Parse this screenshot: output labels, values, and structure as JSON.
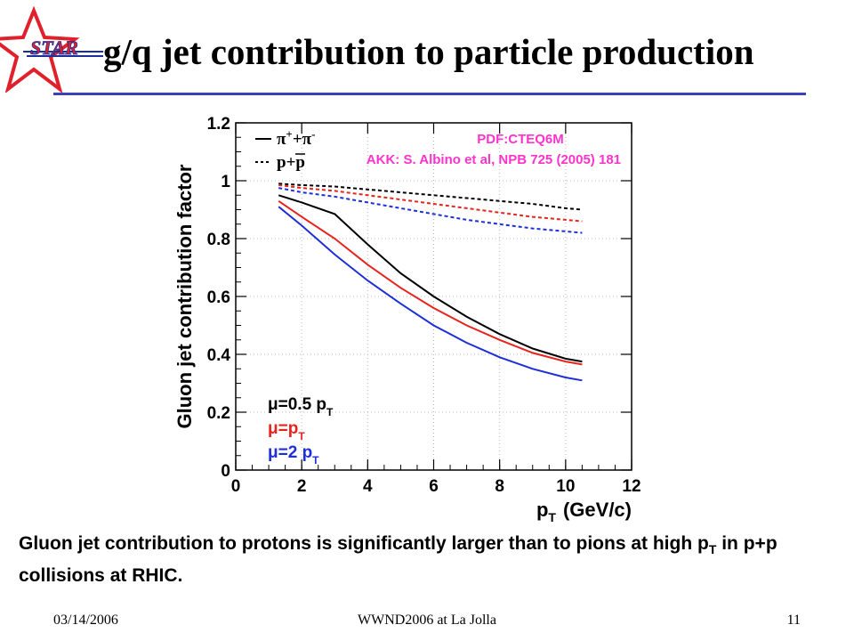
{
  "slide": {
    "logo_text": "STAR",
    "title": "g/q jet contribution to particle production",
    "caption_part1": "Gluon jet contribution to protons is significantly larger than to pions at high p",
    "caption_sub": "T",
    "caption_part2": " in p+p collisions at RHIC.",
    "footer_date": "03/14/2006",
    "footer_event": "WWND2006 at La Jolla",
    "footer_page": "11"
  },
  "colors": {
    "rule": "#3b3fb8",
    "logo_star": "#e0202a",
    "logo_text": "#1a2f9c"
  },
  "chart_data": {
    "type": "line",
    "ylabel": "Gluon jet contribution factor",
    "xlabel_main": "p",
    "xlabel_sub": "T",
    "xlabel_units": "(GeV/c)",
    "xlim": [
      0,
      12
    ],
    "ylim": [
      0,
      1.2
    ],
    "xticks": [
      "0",
      "2",
      "4",
      "6",
      "8",
      "10",
      "12"
    ],
    "yticks": [
      "0",
      "0.2",
      "0.4",
      "0.6",
      "0.8",
      "1",
      "1.2"
    ],
    "grid": true,
    "legend_style": [
      {
        "style": "solid",
        "label_main": "π",
        "label_sup1": "+",
        "label_mid": "+π",
        "label_sup2": "-"
      },
      {
        "style": "dashed",
        "label": "p+p"
      }
    ],
    "legend_scale": [
      {
        "label_main": "μ=0.5 p",
        "label_sub": "T",
        "color": "#000000"
      },
      {
        "label_main": "μ=p",
        "label_sub": "T",
        "color": "#e8231c"
      },
      {
        "label_main": "μ=2 p",
        "label_sub": "T",
        "color": "#1d2fd6"
      }
    ],
    "annotations": [
      {
        "text": "PDF:CTEQ6M",
        "color": "#ff33cc"
      },
      {
        "text": "AKK: S. Albino et al, NPB 725 (2005) 181",
        "color": "#ff33cc"
      }
    ],
    "series": [
      {
        "particle": "pions",
        "scale": "0.5 pT",
        "style": "solid",
        "color": "#000000",
        "x": [
          1.3,
          2,
          3,
          4,
          5,
          6,
          7,
          8,
          9,
          10,
          10.5
        ],
        "y": [
          0.95,
          0.925,
          0.885,
          0.78,
          0.68,
          0.6,
          0.53,
          0.47,
          0.42,
          0.385,
          0.375
        ]
      },
      {
        "particle": "pions",
        "scale": "pT",
        "style": "solid",
        "color": "#e8231c",
        "x": [
          1.3,
          2,
          3,
          4,
          5,
          6,
          7,
          8,
          9,
          10,
          10.5
        ],
        "y": [
          0.93,
          0.875,
          0.8,
          0.71,
          0.63,
          0.56,
          0.5,
          0.45,
          0.405,
          0.375,
          0.365
        ]
      },
      {
        "particle": "pions",
        "scale": "2 pT",
        "style": "solid",
        "color": "#1d2fd6",
        "x": [
          1.3,
          2,
          3,
          4,
          5,
          6,
          7,
          8,
          9,
          10,
          10.5
        ],
        "y": [
          0.91,
          0.845,
          0.745,
          0.655,
          0.575,
          0.5,
          0.44,
          0.39,
          0.35,
          0.32,
          0.31
        ]
      },
      {
        "particle": "protons",
        "scale": "0.5 pT",
        "style": "dashed",
        "color": "#000000",
        "x": [
          1.3,
          2,
          3,
          4,
          5,
          6,
          7,
          8,
          9,
          10,
          10.5
        ],
        "y": [
          0.99,
          0.985,
          0.98,
          0.97,
          0.96,
          0.95,
          0.94,
          0.93,
          0.92,
          0.905,
          0.9
        ]
      },
      {
        "particle": "protons",
        "scale": "pT",
        "style": "dashed",
        "color": "#e8231c",
        "x": [
          1.3,
          2,
          3,
          4,
          5,
          6,
          7,
          8,
          9,
          10,
          10.5
        ],
        "y": [
          0.985,
          0.975,
          0.965,
          0.95,
          0.935,
          0.92,
          0.905,
          0.89,
          0.875,
          0.865,
          0.86
        ]
      },
      {
        "particle": "protons",
        "scale": "2 pT",
        "style": "dashed",
        "color": "#1d2fd6",
        "x": [
          1.3,
          2,
          3,
          4,
          5,
          6,
          7,
          8,
          9,
          10,
          10.5
        ],
        "y": [
          0.975,
          0.96,
          0.945,
          0.925,
          0.905,
          0.885,
          0.865,
          0.85,
          0.835,
          0.825,
          0.82
        ]
      }
    ]
  }
}
